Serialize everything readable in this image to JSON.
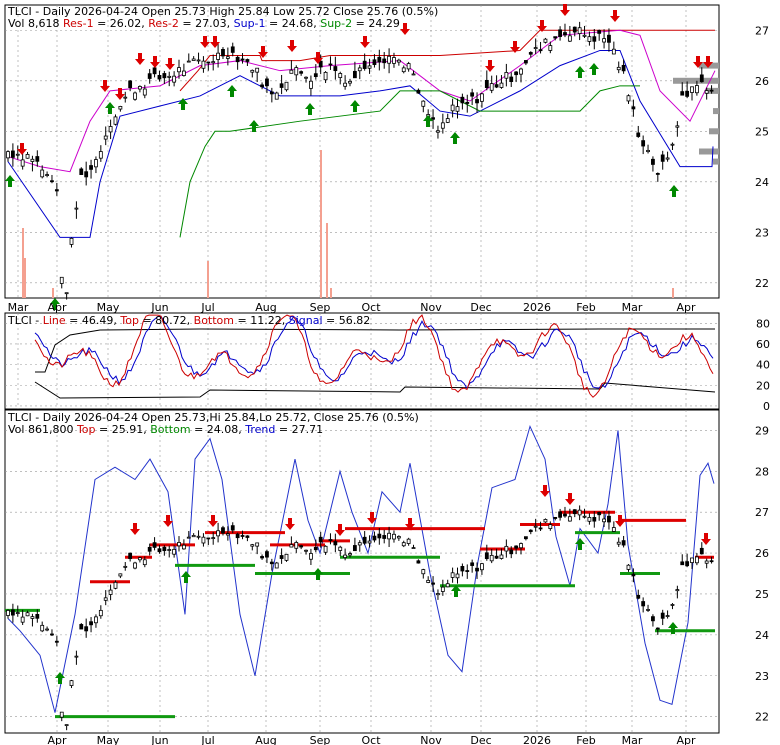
{
  "chart_data": [
    {
      "type": "candlestick",
      "header": {
        "line1": [
          {
            "text": "TLCI - Daily 2026-04-24 Open 25.73",
            "color": "#000000"
          },
          {
            "text": "  High 25.84  Low 25.72  Close 25.76 (0.5%)",
            "color": "#000000"
          }
        ],
        "line2": [
          {
            "text": "Vol 8,618 ",
            "color": "#000000"
          },
          {
            "text": "Res-1",
            "color": "#cc0000"
          },
          {
            "text": " = 26.02, ",
            "color": "#000000"
          },
          {
            "text": "Res-2",
            "color": "#cc0000"
          },
          {
            "text": " = 27.03, ",
            "color": "#000000"
          },
          {
            "text": "Sup-1",
            "color": "#0000cc"
          },
          {
            "text": " = 24.68, ",
            "color": "#000000"
          },
          {
            "text": "Sup-2",
            "color": "#008800"
          },
          {
            "text": " = 24.29",
            "color": "#000000"
          }
        ]
      },
      "y_ticks": [
        "27",
        "26",
        "25",
        "24",
        "23",
        "22"
      ],
      "y_range": [
        21.7,
        27.5
      ],
      "x_ticks": [
        "Mar",
        "Apr",
        "May",
        "Jun",
        "Jul",
        "Aug",
        "Sep",
        "Oct",
        "Nov",
        "Dec",
        "2026",
        "Feb",
        "Mar",
        "Apr"
      ],
      "series_colors": {
        "res1": "#cc00cc",
        "res2": "#cc0000",
        "sup1": "#0000cc",
        "sup2": "#008800",
        "volume": "#f4a090"
      }
    },
    {
      "type": "line",
      "header": [
        {
          "text": "TLCI",
          "color": "#000000"
        },
        {
          "text": " - ",
          "color": "#000000"
        },
        {
          "text": "Line",
          "color": "#cc0000"
        },
        {
          "text": " = 46.49, ",
          "color": "#000000"
        },
        {
          "text": "Top",
          "color": "#cc0000"
        },
        {
          "text": " = 80.72, ",
          "color": "#000000"
        },
        {
          "text": "Bottom",
          "color": "#cc0000"
        },
        {
          "text": " = 11.22, ",
          "color": "#000000"
        },
        {
          "text": "Signal",
          "color": "#0000cc"
        },
        {
          "text": " = 56.82",
          "color": "#000000"
        }
      ],
      "y_ticks": [
        "80",
        "60",
        "40",
        "20",
        "0"
      ],
      "y_range": [
        -3,
        90
      ],
      "values": {
        "line": 46.49,
        "top": 80.72,
        "bottom": 11.22,
        "signal": 56.82
      }
    },
    {
      "type": "candlestick",
      "header": {
        "line1": [
          {
            "text": "TLCI - Daily 2026-04-24 Open 25.73,Hi 25.84,Lo 25.72, Close 25.76 (0.5%)",
            "color": "#000000"
          }
        ],
        "line2": [
          {
            "text": "Vol 861,800 ",
            "color": "#000000"
          },
          {
            "text": "Top",
            "color": "#cc0000"
          },
          {
            "text": " = 25.91, ",
            "color": "#000000"
          },
          {
            "text": "Bottom",
            "color": "#008800"
          },
          {
            "text": " = 24.08, ",
            "color": "#000000"
          },
          {
            "text": "Trend",
            "color": "#0000cc"
          },
          {
            "text": " = 27.71",
            "color": "#000000"
          }
        ]
      },
      "y_ticks": [
        "29",
        "28",
        "27",
        "26",
        "25",
        "24",
        "23",
        "22"
      ],
      "y_range": [
        21.6,
        29.5
      ],
      "x_ticks": [
        "Apr",
        "May",
        "Jun",
        "Jul",
        "Aug",
        "Sep",
        "Oct",
        "Nov",
        "Dec",
        "2026",
        "Feb",
        "Mar",
        "Apr"
      ]
    }
  ]
}
